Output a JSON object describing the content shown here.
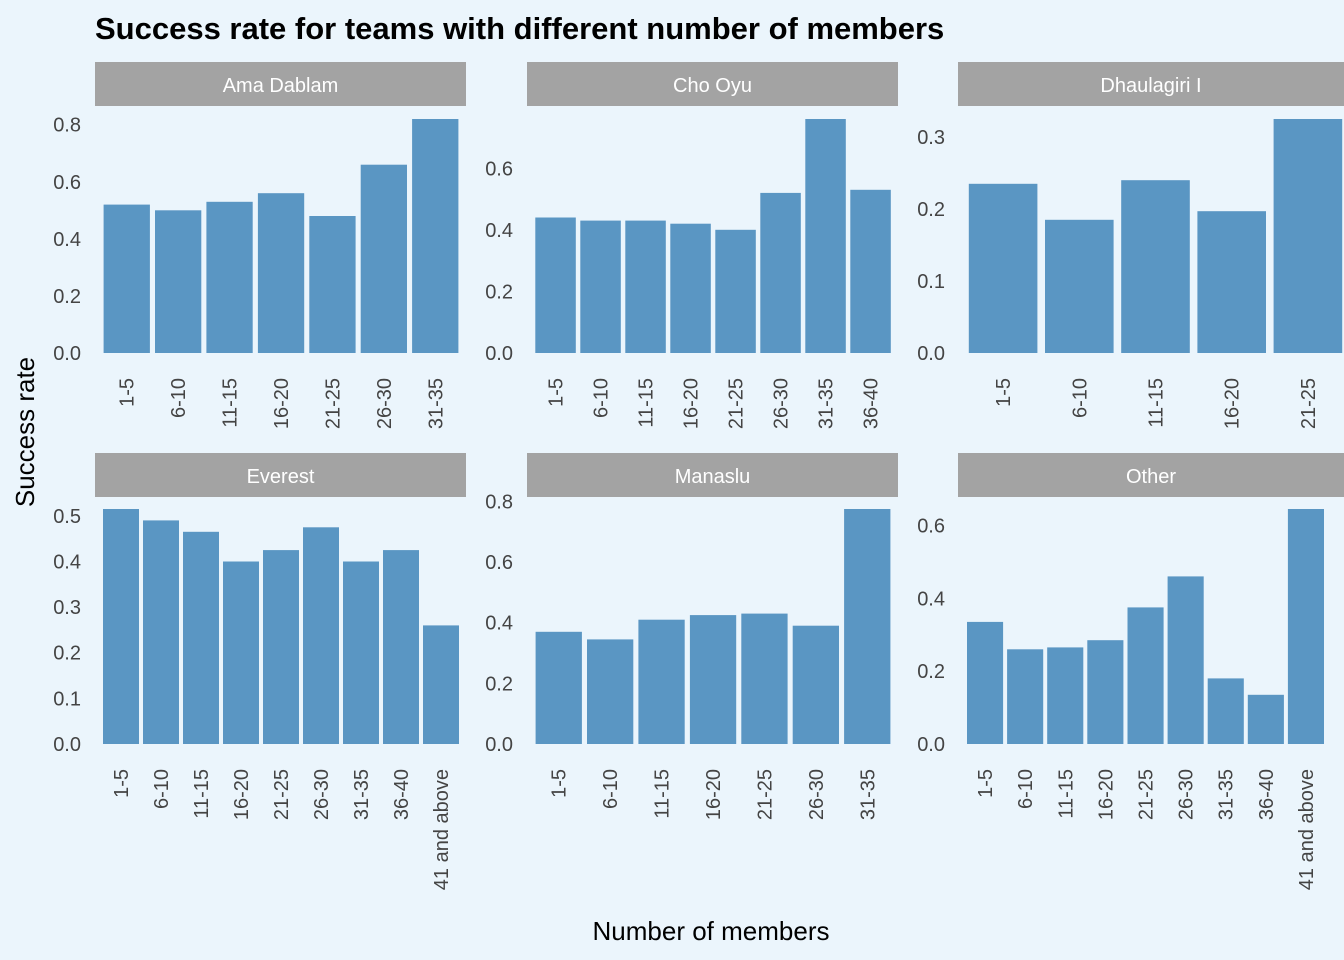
{
  "chart_data": {
    "type": "bar",
    "title": "Success rate for teams with different number of members",
    "xlabel": "Number of members",
    "ylabel": "Success rate",
    "colors": {
      "bar": "#5a96c3",
      "strip": "#a3a3a3",
      "background": "#ebf5fc",
      "strip_text": "#ffffff",
      "tick_text": "#444444"
    },
    "grid": false,
    "facets": [
      {
        "name": "Ama Dablam",
        "categories": [
          "1-5",
          "6-10",
          "11-15",
          "16-20",
          "21-25",
          "26-30",
          "31-35"
        ],
        "values": [
          0.52,
          0.5,
          0.53,
          0.56,
          0.48,
          0.66,
          0.82
        ],
        "ylim": [
          0,
          0.82
        ],
        "yticks": [
          "0.0",
          "0.2",
          "0.4",
          "0.6",
          "0.8"
        ]
      },
      {
        "name": "Cho Oyu",
        "categories": [
          "1-5",
          "6-10",
          "11-15",
          "16-20",
          "21-25",
          "26-30",
          "31-35",
          "36-40"
        ],
        "values": [
          0.44,
          0.43,
          0.43,
          0.42,
          0.4,
          0.52,
          0.76,
          0.53
        ],
        "ylim": [
          0,
          0.76
        ],
        "yticks": [
          "0.0",
          "0.2",
          "0.4",
          "0.6"
        ]
      },
      {
        "name": "Dhaulagiri I",
        "categories": [
          "1-5",
          "6-10",
          "11-15",
          "16-20",
          "21-25"
        ],
        "values": [
          0.235,
          0.185,
          0.24,
          0.197,
          0.325
        ],
        "ylim": [
          0,
          0.325
        ],
        "yticks": [
          "0.0",
          "0.1",
          "0.2",
          "0.3"
        ]
      },
      {
        "name": "Everest",
        "categories": [
          "1-5",
          "6-10",
          "11-15",
          "16-20",
          "21-25",
          "26-30",
          "31-35",
          "36-40",
          "41 and above"
        ],
        "values": [
          0.515,
          0.49,
          0.465,
          0.4,
          0.425,
          0.475,
          0.4,
          0.425,
          0.26
        ],
        "ylim": [
          0,
          0.515
        ],
        "yticks": [
          "0.0",
          "0.1",
          "0.2",
          "0.3",
          "0.4",
          "0.5"
        ]
      },
      {
        "name": "Manaslu",
        "categories": [
          "1-5",
          "6-10",
          "11-15",
          "16-20",
          "21-25",
          "26-30",
          "31-35"
        ],
        "values": [
          0.37,
          0.345,
          0.41,
          0.425,
          0.43,
          0.39,
          0.775
        ],
        "ylim": [
          0,
          0.775
        ],
        "yticks": [
          "0.0",
          "0.2",
          "0.4",
          "0.6",
          "0.8"
        ]
      },
      {
        "name": "Other",
        "categories": [
          "1-5",
          "6-10",
          "11-15",
          "16-20",
          "21-25",
          "26-30",
          "31-35",
          "36-40",
          "41 and above"
        ],
        "values": [
          0.335,
          0.26,
          0.265,
          0.285,
          0.375,
          0.46,
          0.18,
          0.135,
          0.645
        ],
        "ylim": [
          0,
          0.645
        ],
        "yticks": [
          "0.0",
          "0.2",
          "0.4",
          "0.6"
        ]
      }
    ]
  }
}
